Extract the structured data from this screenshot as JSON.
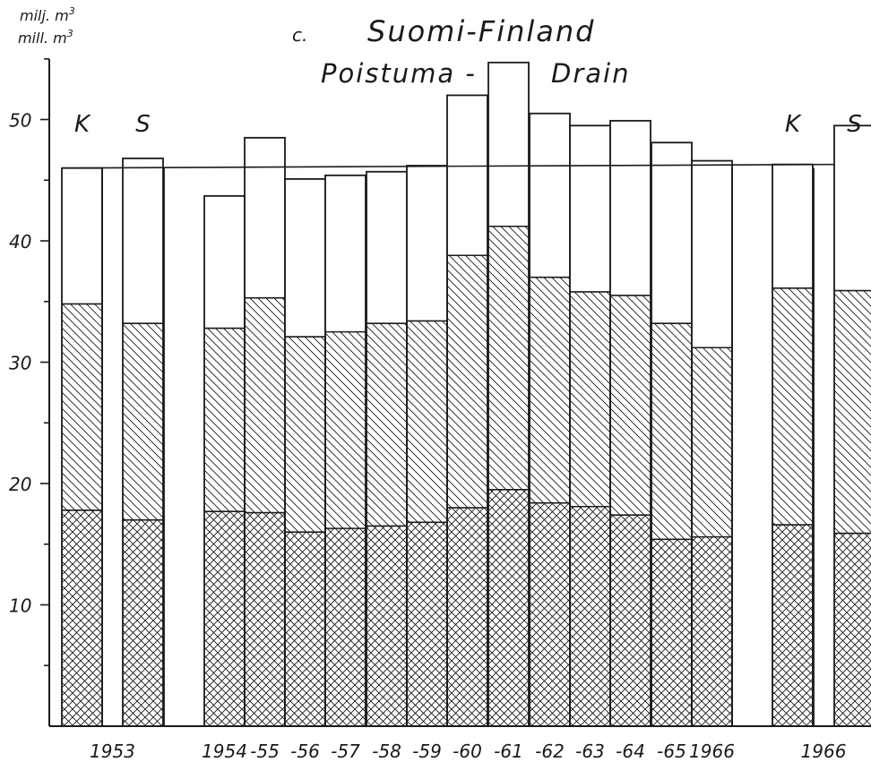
{
  "chart_data": {
    "type": "bar",
    "stacked": true,
    "title_prefix": "c.",
    "title": "Suomi-Finland",
    "subtitle_left": "Poistuma -",
    "subtitle_right": "Drain",
    "unit_fi": "milj. m",
    "unit_sv": "mill. m",
    "unit_exp": "3",
    "ylim": [
      0,
      55
    ],
    "yticks": [
      "10",
      "20",
      "30",
      "40",
      "50"
    ],
    "group_labels": [
      {
        "text": "K",
        "key": "k1"
      },
      {
        "text": "S",
        "key": "s1"
      },
      {
        "text": "K",
        "key": "k2"
      },
      {
        "text": "S",
        "key": "s2"
      }
    ],
    "bars": [
      {
        "key": "k1",
        "tick": "",
        "bottom": 17.8,
        "middle": 34.8,
        "total": 46.0
      },
      {
        "key": "s1",
        "tick": "",
        "bottom": 17.0,
        "middle": 33.2,
        "total": 46.8
      },
      {
        "key": "y1954",
        "tick": "1954",
        "bottom": 17.7,
        "middle": 32.8,
        "total": 43.7
      },
      {
        "key": "y1955",
        "tick": "-55",
        "bottom": 17.6,
        "middle": 35.3,
        "total": 48.5
      },
      {
        "key": "y1956",
        "tick": "-56",
        "bottom": 16.0,
        "middle": 32.1,
        "total": 45.1
      },
      {
        "key": "y1957",
        "tick": "-57",
        "bottom": 16.3,
        "middle": 32.5,
        "total": 45.4
      },
      {
        "key": "y1958",
        "tick": "-58",
        "bottom": 16.5,
        "middle": 33.2,
        "total": 45.7
      },
      {
        "key": "y1959",
        "tick": "-59",
        "bottom": 16.8,
        "middle": 33.4,
        "total": 46.2
      },
      {
        "key": "y1960",
        "tick": "-60",
        "bottom": 18.0,
        "middle": 38.8,
        "total": 52.0
      },
      {
        "key": "y1961",
        "tick": "-61",
        "bottom": 19.5,
        "middle": 41.2,
        "total": 54.7
      },
      {
        "key": "y1962",
        "tick": "-62",
        "bottom": 18.4,
        "middle": 37.0,
        "total": 50.5
      },
      {
        "key": "y1963",
        "tick": "-63",
        "bottom": 18.1,
        "middle": 35.8,
        "total": 49.5
      },
      {
        "key": "y1964",
        "tick": "-64",
        "bottom": 17.4,
        "middle": 35.5,
        "total": 49.9
      },
      {
        "key": "y1965",
        "tick": "-65",
        "bottom": 15.4,
        "middle": 33.2,
        "total": 48.1
      },
      {
        "key": "y1966",
        "tick": "1966",
        "bottom": 15.6,
        "middle": 31.2,
        "total": 46.6
      },
      {
        "key": "k2",
        "tick": "",
        "bottom": 16.6,
        "middle": 36.1,
        "total": 46.3
      },
      {
        "key": "s2",
        "tick": "",
        "bottom": 15.9,
        "middle": 35.9,
        "total": 49.5
      }
    ],
    "trend_line": {
      "from": 46.0,
      "to": 46.3
    },
    "group_ticks": [
      {
        "text": "1953",
        "between": [
          "k1",
          "s1"
        ]
      },
      {
        "text": "1966",
        "between": [
          "k2",
          "s2"
        ]
      }
    ],
    "fills": {
      "bottom": "cross-hatch",
      "middle": "diagonal-hatch",
      "top": "blank"
    },
    "colors": {
      "ink": "#1a1a1a",
      "paper": "#ffffff"
    }
  }
}
